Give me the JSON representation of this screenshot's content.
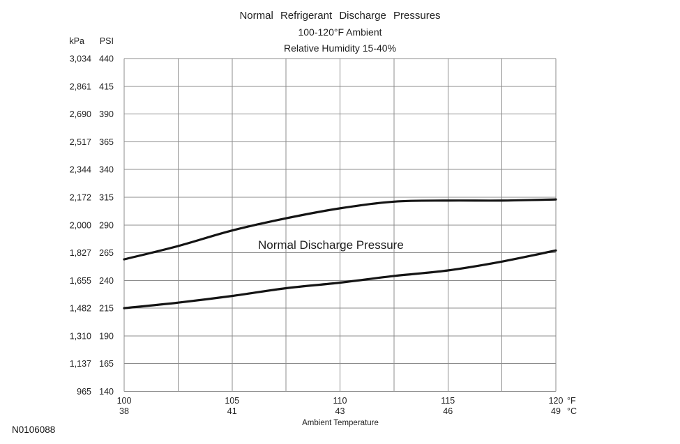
{
  "figure": {
    "title": "Normal Refrigerant Discharge Pressures",
    "subtitle1": "100-120°F Ambient",
    "subtitle2": "Relative Humidity 15-40%",
    "annotation": "Normal Discharge Pressure",
    "code": "N0106088"
  },
  "chart_data": {
    "type": "line",
    "title": "Normal Refrigerant Discharge Pressures",
    "subtitle": "100-120°F Ambient, Relative Humidity 15-40%",
    "xlabel": "Ambient Temperature",
    "y_unit_left": "kPa",
    "y_unit_right": "PSI",
    "x_unit_f": "°F",
    "x_unit_c": "°C",
    "xlim": [
      100,
      120
    ],
    "ylim_psi": [
      140,
      440
    ],
    "grid": true,
    "x_gridline_step_f": 2.5,
    "x_ticks_f": [
      "100",
      "105",
      "110",
      "115",
      "120"
    ],
    "x_ticks_c": [
      "38",
      "41",
      "43",
      "46",
      "49"
    ],
    "y_ticks_psi": [
      "440",
      "415",
      "390",
      "365",
      "340",
      "315",
      "290",
      "265",
      "240",
      "215",
      "190",
      "165",
      "140"
    ],
    "y_ticks_kpa": [
      "3,034",
      "2,861",
      "2,690",
      "2,517",
      "2,344",
      "2,172",
      "2,000",
      "1,827",
      "1,655",
      "1,482",
      "1,310",
      "1,137",
      "965"
    ],
    "annotation": "Normal Discharge Pressure",
    "series": [
      {
        "name": "upper-normal-discharge-pressure",
        "x": [
          100,
          102.5,
          105,
          107.5,
          110,
          112.5,
          115,
          117.5,
          120
        ],
        "y_psi": [
          259,
          271,
          285,
          296,
          305,
          311,
          312,
          312,
          313
        ]
      },
      {
        "name": "lower-normal-discharge-pressure",
        "x": [
          100,
          102.5,
          105,
          107.5,
          110,
          112.5,
          115,
          117.5,
          120
        ],
        "y_psi": [
          215,
          220,
          226,
          233,
          238,
          244,
          249,
          257,
          267
        ]
      }
    ]
  }
}
